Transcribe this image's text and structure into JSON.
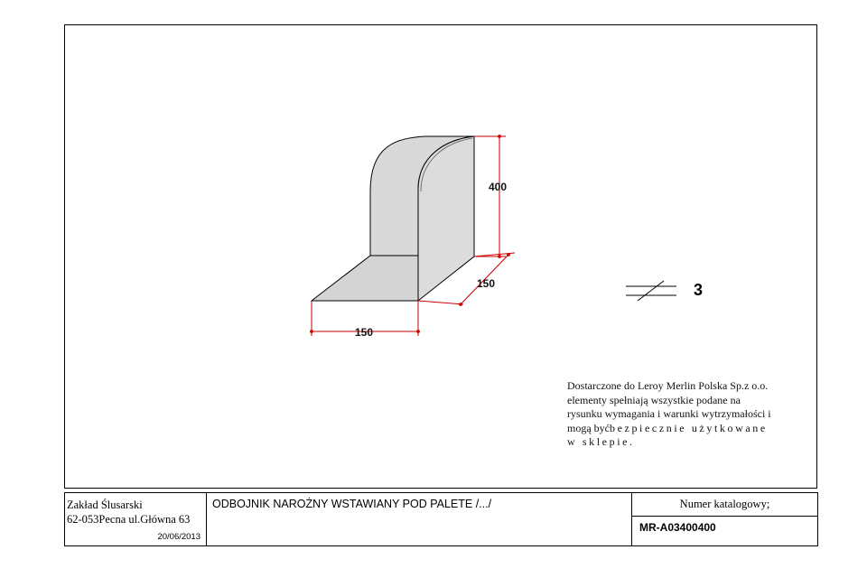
{
  "drawing": {
    "dimensions": {
      "height": "400",
      "depth": "150",
      "width": "150"
    },
    "quantity": "3",
    "note": {
      "line1": "Dostarczone do Leroy Merlin Polska Sp.z o.o.",
      "line2": "elementy spełniają wszystkie podane na",
      "line3": "rysunku wymagania i warunki wytrzymałości i",
      "line4_start": "mogą być",
      "line4_spaced": "bezpiecznie użytkowane",
      "line5": "w sklepie."
    },
    "colors": {
      "part_fill": "#d9d9d9",
      "dimension_lines": "#cc0000",
      "outline": "#000000"
    }
  },
  "title_block": {
    "company_name": "Zakład Ślusarski",
    "company_address": "62-053Pecna ul.Główna 63",
    "date": "20/06/2013",
    "product_title": "ODBOJNIK NAROŻNY WSTAWIANY POD PALETE  /.../",
    "catalog_label": "Numer katalogowy;",
    "catalog_number": "MR-A03400400"
  }
}
